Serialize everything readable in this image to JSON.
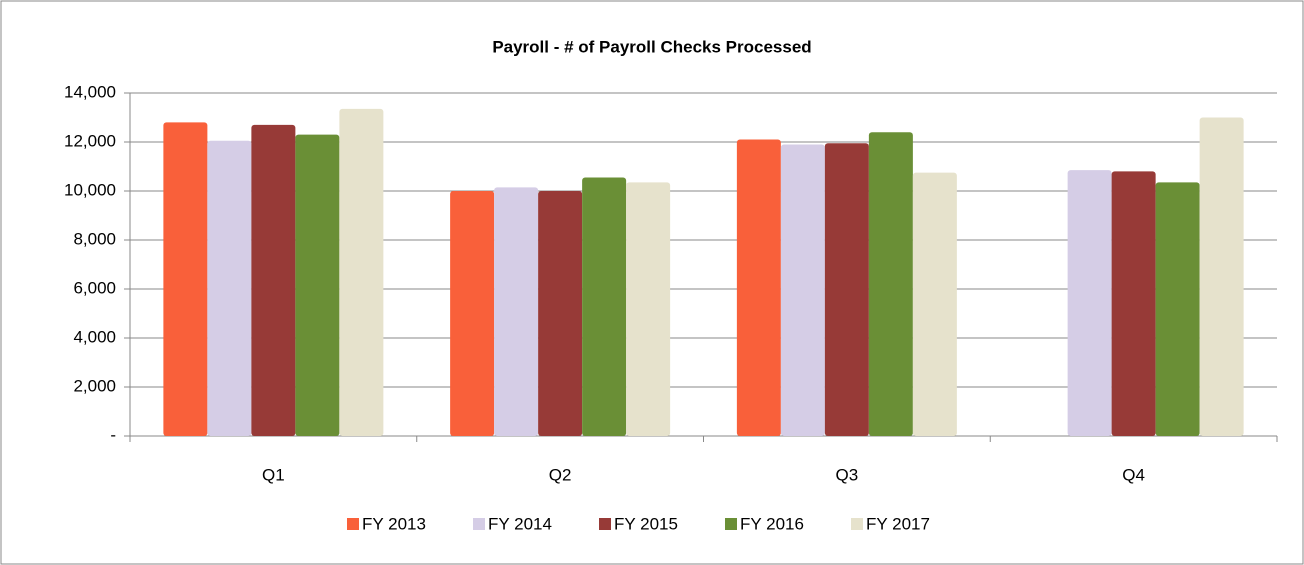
{
  "chart_data": {
    "type": "bar",
    "title": "Payroll - # of Payroll Checks Processed",
    "categories": [
      "Q1",
      "Q2",
      "Q3",
      "Q4"
    ],
    "series": [
      {
        "name": "FY 2013",
        "color": "#f9603a",
        "values": [
          12800,
          10000,
          12100,
          null
        ]
      },
      {
        "name": "FY 2014",
        "color": "#d5cde6",
        "values": [
          12050,
          10150,
          11900,
          10850
        ]
      },
      {
        "name": "FY 2015",
        "color": "#973a37",
        "values": [
          12700,
          10000,
          11950,
          10800
        ]
      },
      {
        "name": "FY 2016",
        "color": "#6a8f36",
        "values": [
          12300,
          10550,
          12400,
          10350
        ]
      },
      {
        "name": "FY 2017",
        "color": "#e6e2cc",
        "values": [
          13350,
          10350,
          10750,
          13000
        ]
      }
    ],
    "ylim": [
      0,
      14000
    ],
    "yticks": [
      {
        "value": 0,
        "label": "-"
      },
      {
        "value": 2000,
        "label": "2,000"
      },
      {
        "value": 4000,
        "label": "4,000"
      },
      {
        "value": 6000,
        "label": "6,000"
      },
      {
        "value": 8000,
        "label": "8,000"
      },
      {
        "value": 10000,
        "label": "10,000"
      },
      {
        "value": 12000,
        "label": "12,000"
      },
      {
        "value": 14000,
        "label": "14,000"
      }
    ],
    "grid": true,
    "legend": "bottom"
  }
}
